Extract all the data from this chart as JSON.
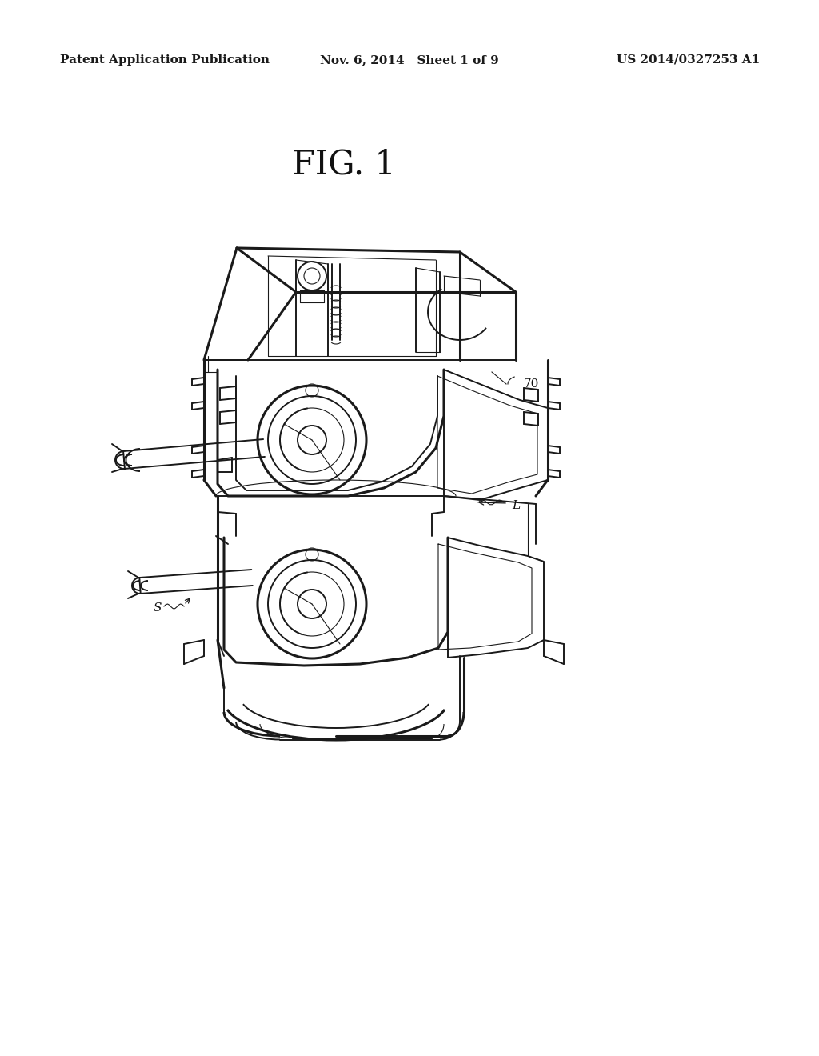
{
  "background_color": "#ffffff",
  "header_left": "Patent Application Publication",
  "header_center": "Nov. 6, 2014   Sheet 1 of 9",
  "header_right": "US 2014/0327253 A1",
  "fig_label": "FIG. 1",
  "label_70": "70",
  "label_L": "L",
  "label_S": "S",
  "header_fontsize": 11,
  "fig_label_fontsize": 30,
  "line_color": "#1a1a1a",
  "lw_main": 1.4,
  "lw_thick": 2.2,
  "lw_thin": 0.8
}
